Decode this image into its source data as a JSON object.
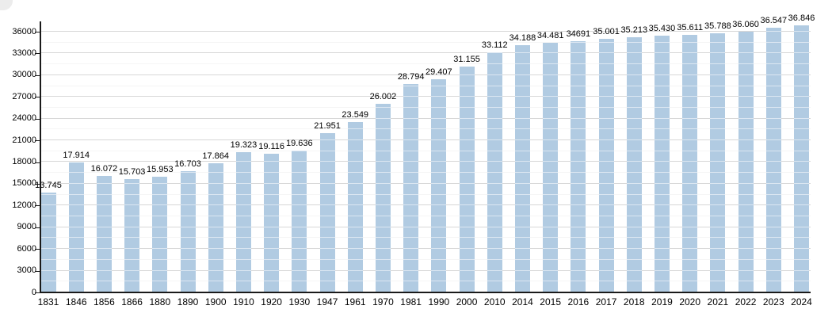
{
  "chart_data": {
    "type": "bar",
    "title": "",
    "xlabel": "",
    "ylabel": "",
    "ylim": [
      0,
      36000
    ],
    "ytick_step": 3000,
    "minor_gridline_step": 1500,
    "grid": "on",
    "legend": "none",
    "categories": [
      "1831",
      "1846",
      "1856",
      "1866",
      "1880",
      "1890",
      "1900",
      "1910",
      "1920",
      "1930",
      "1947",
      "1961",
      "1970",
      "1981",
      "1990",
      "2000",
      "2010",
      "2014",
      "2015",
      "2016",
      "2017",
      "2018",
      "2019",
      "2020",
      "2021",
      "2022",
      "2023",
      "2024"
    ],
    "values": [
      13745,
      17914,
      16072,
      15703,
      15953,
      16703,
      17864,
      19323,
      19116,
      19636,
      21951,
      23549,
      26002,
      28794,
      29407,
      31155,
      33112,
      34188,
      34481,
      34691,
      35001,
      35213,
      35430,
      35611,
      35788,
      36060,
      36547,
      36846
    ],
    "value_labels": [
      "13.745",
      "17.914",
      "16.072",
      "15.703",
      "15.953",
      "16.703",
      "17.864",
      "19.323",
      "19.116",
      "19.636",
      "21.951",
      "23.549",
      "26.002",
      "28.794",
      "29.407",
      "31.155",
      "33.112",
      "34.188",
      "34.481",
      "34691",
      "35.001",
      "35.213",
      "35.430",
      "35.611",
      "35.788",
      "36.060",
      "36.547",
      "36.846"
    ],
    "colors": {
      "bar": "#b1cbe2",
      "axis": "#1a1a1a",
      "major_grid": "#a6a6a6",
      "minor_grid": "#e8e8e8",
      "grid_overlay_on_bars": "rgba(255,255,255,0.55)",
      "text": "#000000",
      "background": "#ffffff"
    }
  }
}
